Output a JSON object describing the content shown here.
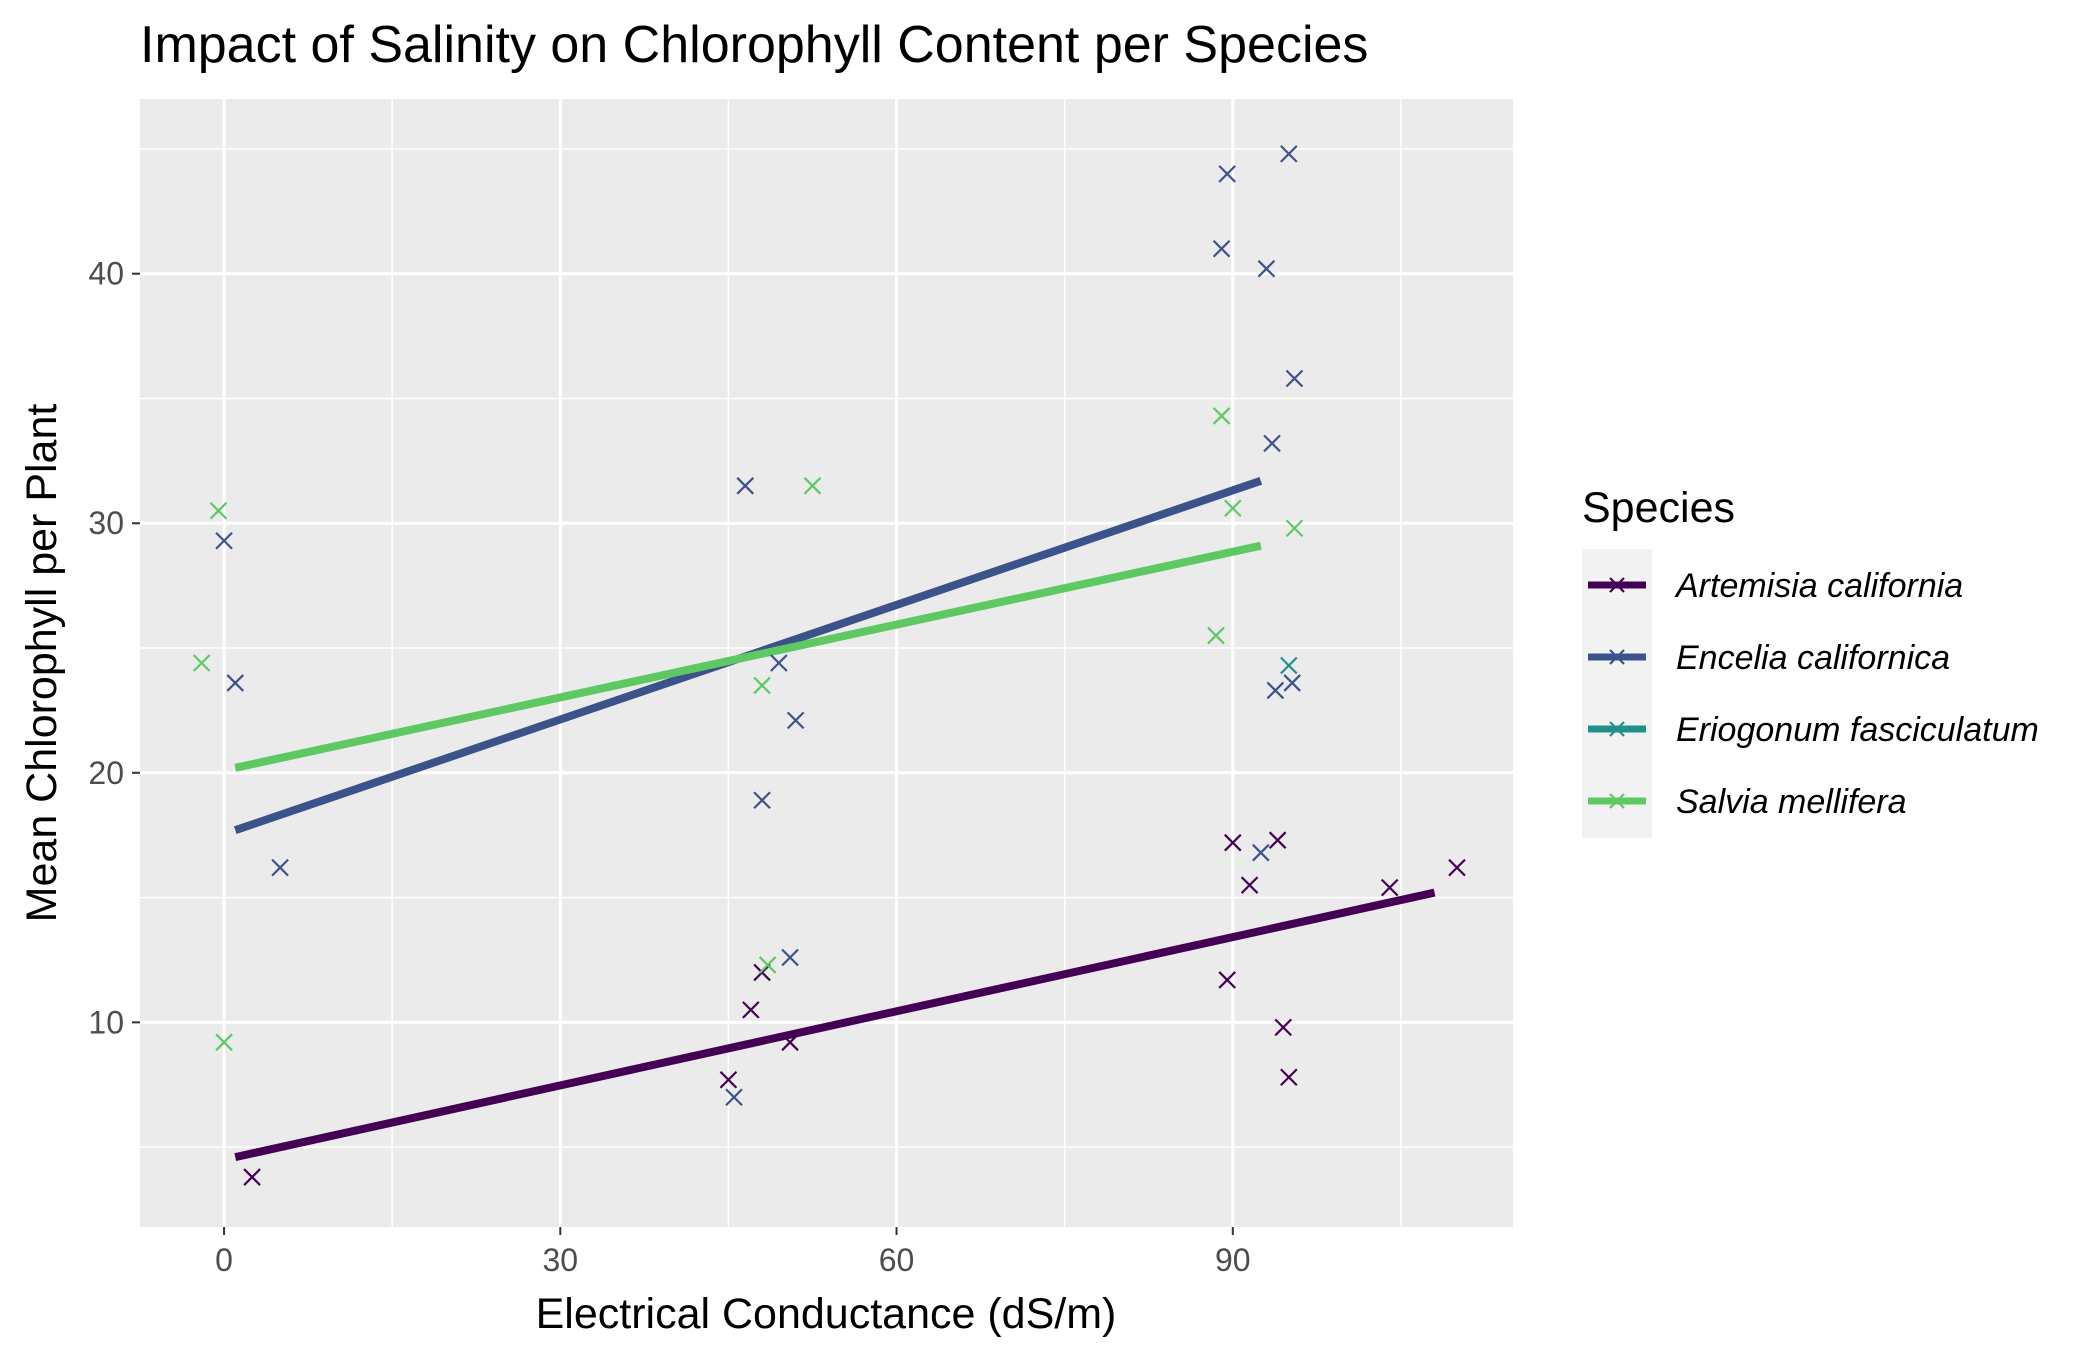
{
  "chart_data": {
    "type": "scatter",
    "title": "Impact of Salinity on Chlorophyll Content per Species",
    "xlabel": "Electrical Conductance (dS/m)",
    "ylabel": "Mean Chlorophyll per Plant",
    "xlim": [
      -7.5,
      115
    ],
    "ylim": [
      1.8,
      47
    ],
    "xticks": [
      0,
      30,
      60,
      90
    ],
    "yticks": [
      10,
      20,
      30,
      40
    ],
    "grid": true,
    "legend": {
      "title": "Species",
      "position": "right"
    },
    "series": [
      {
        "name": "Artemisia california",
        "color": "#440154",
        "points": [
          [
            2.5,
            3.8
          ],
          [
            45,
            7.7
          ],
          [
            47,
            10.5
          ],
          [
            48,
            12.0
          ],
          [
            50.5,
            9.2
          ],
          [
            89.5,
            11.7
          ],
          [
            90,
            17.2
          ],
          [
            91.5,
            15.5
          ],
          [
            94,
            17.3
          ],
          [
            94.5,
            9.8
          ],
          [
            95,
            7.8
          ],
          [
            104,
            15.4
          ],
          [
            110,
            16.2
          ]
        ],
        "trend": [
          [
            1,
            4.6
          ],
          [
            108,
            15.2
          ]
        ]
      },
      {
        "name": "Encelia californica",
        "color": "#3b528b",
        "points": [
          [
            0,
            29.3
          ],
          [
            1,
            23.6
          ],
          [
            5,
            16.2
          ],
          [
            45.5,
            7.0
          ],
          [
            46.5,
            31.5
          ],
          [
            48,
            18.9
          ],
          [
            49.5,
            24.4
          ],
          [
            50.5,
            12.6
          ],
          [
            51,
            22.1
          ],
          [
            89,
            41.0
          ],
          [
            89.5,
            44.0
          ],
          [
            92.5,
            16.8
          ],
          [
            93,
            40.2
          ],
          [
            93.5,
            33.2
          ],
          [
            93.8,
            23.3
          ],
          [
            95,
            44.8
          ],
          [
            95.3,
            23.6
          ],
          [
            95.5,
            35.8
          ]
        ],
        "trend": [
          [
            1,
            17.7
          ],
          [
            92.5,
            31.7
          ]
        ]
      },
      {
        "name": "Eriogonum fasciculatum",
        "color": "#21908c",
        "points": [
          [
            95,
            24.3
          ]
        ],
        "trend": []
      },
      {
        "name": "Salvia mellifera",
        "color": "#5ec962",
        "points": [
          [
            -2,
            24.4
          ],
          [
            -0.5,
            30.5
          ],
          [
            0,
            9.2
          ],
          [
            48,
            23.5
          ],
          [
            48.5,
            12.3
          ],
          [
            52.5,
            31.5
          ],
          [
            88.5,
            25.5
          ],
          [
            89,
            34.3
          ],
          [
            90,
            30.6
          ],
          [
            95.5,
            29.8
          ]
        ],
        "trend": [
          [
            1,
            20.2
          ],
          [
            92.5,
            29.1
          ]
        ]
      }
    ]
  }
}
